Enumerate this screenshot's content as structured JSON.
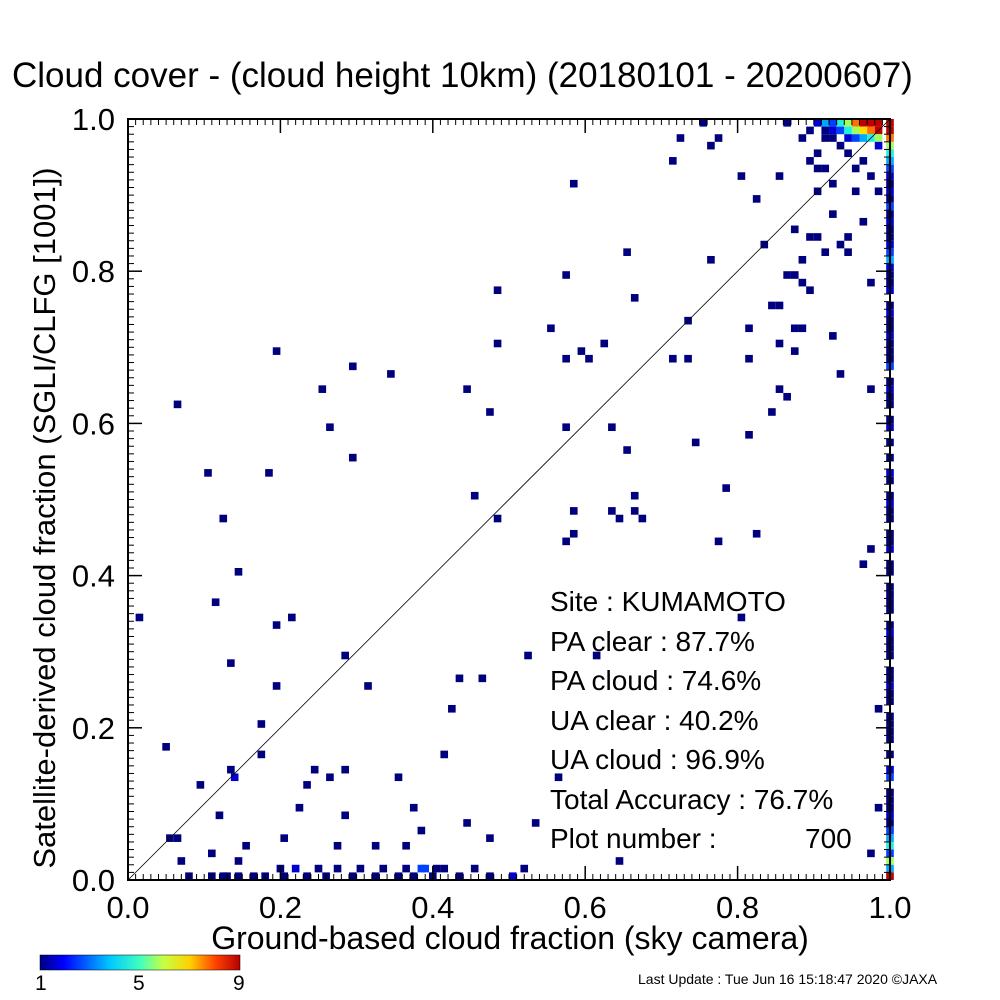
{
  "chart_data": {
    "type": "heatmap",
    "title": "Cloud cover - (cloud height 10km)  (20180101 - 20200607)",
    "xlabel": "Ground-based cloud fraction (sky camera)",
    "ylabel": "Satellite-derived cloud fraction (SGLI/CLFG [1001])",
    "xlim": [
      0,
      1
    ],
    "ylim": [
      0,
      1
    ],
    "x_ticks": [
      "0.0",
      "0.2",
      "0.4",
      "0.6",
      "0.8",
      "1.0"
    ],
    "y_ticks": [
      "0.0",
      "0.2",
      "0.4",
      "0.6",
      "0.8",
      "1.0"
    ],
    "reference_line": "y = x",
    "grid": false,
    "colorbar": {
      "min": 1,
      "max": 9,
      "ticks": [
        "1",
        "5",
        "9"
      ],
      "colormap": "rainbow (blue to red)"
    },
    "cells": [
      [
        0.01,
        0.34,
        1
      ],
      [
        0.06,
        0.62,
        1
      ],
      [
        0.045,
        0.17,
        1
      ],
      [
        0.05,
        0.05,
        1
      ],
      [
        0.06,
        0.05,
        1
      ],
      [
        0.065,
        0.02,
        1
      ],
      [
        0.075,
        0,
        1
      ],
      [
        0.09,
        0.12,
        1
      ],
      [
        0.1,
        0.53,
        1
      ],
      [
        0.105,
        0.03,
        1
      ],
      [
        0.11,
        0.36,
        1
      ],
      [
        0.115,
        0.08,
        1
      ],
      [
        0.12,
        0.47,
        1
      ],
      [
        0.125,
        0,
        1
      ],
      [
        0.13,
        0.28,
        1
      ],
      [
        0.13,
        0.14,
        1
      ],
      [
        0.135,
        0.13,
        2
      ],
      [
        0.14,
        0.4,
        1
      ],
      [
        0.14,
        0.02,
        1
      ],
      [
        0.15,
        0.04,
        1
      ],
      [
        0.17,
        0.2,
        1
      ],
      [
        0.17,
        0.16,
        1
      ],
      [
        0.18,
        0.53,
        1
      ],
      [
        0.19,
        0.69,
        1
      ],
      [
        0.19,
        0.33,
        1
      ],
      [
        0.19,
        0.25,
        1
      ],
      [
        0.2,
        0.05,
        1
      ],
      [
        0.21,
        0.34,
        1
      ],
      [
        0.22,
        0.09,
        1
      ],
      [
        0.23,
        0.12,
        1
      ],
      [
        0.24,
        0.14,
        1
      ],
      [
        0.25,
        0.64,
        1
      ],
      [
        0.26,
        0.59,
        1
      ],
      [
        0.26,
        0.13,
        1
      ],
      [
        0.27,
        0.04,
        1
      ],
      [
        0.28,
        0.29,
        1
      ],
      [
        0.28,
        0.14,
        1
      ],
      [
        0.28,
        0.08,
        1
      ],
      [
        0.29,
        0.67,
        1
      ],
      [
        0.29,
        0.55,
        1
      ],
      [
        0.31,
        0.25,
        1
      ],
      [
        0.32,
        0.04,
        1
      ],
      [
        0.34,
        0.66,
        1
      ],
      [
        0.35,
        0.13,
        1
      ],
      [
        0.36,
        0.04,
        1
      ],
      [
        0.37,
        0.09,
        1
      ],
      [
        0.38,
        0.06,
        1
      ],
      [
        0.38,
        0.01,
        3
      ],
      [
        0.4,
        0.01,
        1
      ],
      [
        0.41,
        0.16,
        1
      ],
      [
        0.42,
        0.22,
        1
      ],
      [
        0.43,
        0.26,
        1
      ],
      [
        0.44,
        0.64,
        1
      ],
      [
        0.44,
        0.07,
        1
      ],
      [
        0.45,
        0.5,
        1
      ],
      [
        0.46,
        0.26,
        1
      ],
      [
        0.47,
        0.61,
        1
      ],
      [
        0.47,
        0.05,
        1
      ],
      [
        0.48,
        0.77,
        1
      ],
      [
        0.48,
        0.7,
        1
      ],
      [
        0.48,
        0.47,
        1
      ],
      [
        0.52,
        0.29,
        1
      ],
      [
        0.53,
        0.07,
        1
      ],
      [
        0.55,
        0.72,
        1
      ],
      [
        0.56,
        0.13,
        1
      ],
      [
        0.57,
        0.79,
        1
      ],
      [
        0.57,
        0.68,
        1
      ],
      [
        0.57,
        0.59,
        1
      ],
      [
        0.57,
        0.44,
        1
      ],
      [
        0.58,
        0.91,
        1
      ],
      [
        0.58,
        0.48,
        1
      ],
      [
        0.58,
        0.45,
        1
      ],
      [
        0.59,
        0.69,
        1
      ],
      [
        0.6,
        0.68,
        1
      ],
      [
        0.61,
        0.29,
        1
      ],
      [
        0.62,
        0.7,
        1
      ],
      [
        0.63,
        0.59,
        1
      ],
      [
        0.63,
        0.48,
        1
      ],
      [
        0.64,
        0.47,
        1
      ],
      [
        0.64,
        0.02,
        1
      ],
      [
        0.65,
        0.82,
        1
      ],
      [
        0.65,
        0.56,
        1
      ],
      [
        0.66,
        0.76,
        1
      ],
      [
        0.66,
        0.5,
        1
      ],
      [
        0.66,
        0.48,
        1
      ],
      [
        0.67,
        0.47,
        1
      ],
      [
        0.71,
        0.94,
        1
      ],
      [
        0.71,
        0.68,
        1
      ],
      [
        0.72,
        0.97,
        1
      ],
      [
        0.73,
        0.73,
        1
      ],
      [
        0.73,
        0.68,
        1
      ],
      [
        0.74,
        0.57,
        1
      ],
      [
        0.75,
        0.99,
        1
      ],
      [
        0.76,
        0.96,
        1
      ],
      [
        0.76,
        0.81,
        1
      ],
      [
        0.77,
        0.97,
        1
      ],
      [
        0.77,
        0.44,
        1
      ],
      [
        0.78,
        0.51,
        1
      ],
      [
        0.8,
        0.92,
        1
      ],
      [
        0.8,
        0.34,
        1
      ],
      [
        0.81,
        0.72,
        1
      ],
      [
        0.81,
        0.68,
        1
      ],
      [
        0.81,
        0.58,
        1
      ],
      [
        0.82,
        0.89,
        1
      ],
      [
        0.82,
        0.45,
        1
      ],
      [
        0.83,
        0.83,
        1
      ],
      [
        0.84,
        0.75,
        1
      ],
      [
        0.84,
        0.61,
        1
      ],
      [
        0.85,
        0.92,
        1
      ],
      [
        0.85,
        0.75,
        1
      ],
      [
        0.85,
        0.7,
        1
      ],
      [
        0.85,
        0.64,
        1
      ],
      [
        0.86,
        0.99,
        1
      ],
      [
        0.86,
        0.79,
        1
      ],
      [
        0.86,
        0.63,
        1
      ],
      [
        0.87,
        0.85,
        1
      ],
      [
        0.87,
        0.79,
        1
      ],
      [
        0.87,
        0.72,
        1
      ],
      [
        0.87,
        0.69,
        1
      ],
      [
        0.88,
        0.97,
        1
      ],
      [
        0.88,
        0.81,
        1
      ],
      [
        0.88,
        0.78,
        1
      ],
      [
        0.88,
        0.72,
        1
      ],
      [
        0.89,
        0.98,
        1
      ],
      [
        0.89,
        0.94,
        1
      ],
      [
        0.89,
        0.84,
        1
      ],
      [
        0.89,
        0.77,
        1
      ],
      [
        0.9,
        0.99,
        2
      ],
      [
        0.9,
        0.95,
        1
      ],
      [
        0.9,
        0.93,
        1
      ],
      [
        0.9,
        0.9,
        1
      ],
      [
        0.9,
        0.84,
        1
      ],
      [
        0.91,
        0.99,
        4
      ],
      [
        0.91,
        0.98,
        1
      ],
      [
        0.91,
        0.97,
        1
      ],
      [
        0.91,
        0.93,
        1
      ],
      [
        0.91,
        0.82,
        1
      ],
      [
        0.92,
        0.99,
        3
      ],
      [
        0.92,
        0.98,
        2
      ],
      [
        0.92,
        0.97,
        1
      ],
      [
        0.92,
        0.91,
        1
      ],
      [
        0.92,
        0.87,
        1
      ],
      [
        0.92,
        0.71,
        1
      ],
      [
        0.93,
        0.99,
        5
      ],
      [
        0.93,
        0.98,
        3
      ],
      [
        0.93,
        0.96,
        1
      ],
      [
        0.93,
        0.83,
        1
      ],
      [
        0.93,
        0.66,
        1
      ],
      [
        0.94,
        0.99,
        6
      ],
      [
        0.94,
        0.98,
        5
      ],
      [
        0.94,
        0.97,
        2
      ],
      [
        0.94,
        0.95,
        1
      ],
      [
        0.94,
        0.84,
        1
      ],
      [
        0.94,
        0.82,
        1
      ],
      [
        0.95,
        0.99,
        8
      ],
      [
        0.95,
        0.98,
        6
      ],
      [
        0.95,
        0.97,
        3
      ],
      [
        0.95,
        0.93,
        1
      ],
      [
        0.95,
        0.9,
        1
      ],
      [
        0.96,
        0.99,
        9
      ],
      [
        0.96,
        0.98,
        7
      ],
      [
        0.96,
        0.97,
        4
      ],
      [
        0.96,
        0.94,
        1
      ],
      [
        0.96,
        0.86,
        1
      ],
      [
        0.96,
        0.41,
        1
      ],
      [
        0.97,
        0.99,
        9
      ],
      [
        0.97,
        0.98,
        8
      ],
      [
        0.97,
        0.97,
        5
      ],
      [
        0.97,
        0.92,
        1
      ],
      [
        0.97,
        0.78,
        1
      ],
      [
        0.97,
        0.64,
        1
      ],
      [
        0.97,
        0.43,
        1
      ],
      [
        0.97,
        0.03,
        1
      ],
      [
        0.98,
        0.99,
        9
      ],
      [
        0.98,
        0.98,
        9
      ],
      [
        0.98,
        0.97,
        6
      ],
      [
        0.98,
        0.96,
        2
      ],
      [
        0.98,
        0.9,
        1
      ],
      [
        0.98,
        0.22,
        1
      ],
      [
        0.98,
        0.09,
        1
      ],
      [
        0.995,
        0.99,
        9
      ],
      [
        0.995,
        0.98,
        9
      ],
      [
        0.995,
        0.97,
        8
      ],
      [
        0.995,
        0.96,
        6
      ],
      [
        0.995,
        0.95,
        5
      ],
      [
        0.995,
        0.94,
        4
      ],
      [
        0.995,
        0.93,
        3
      ],
      [
        0.995,
        0.92,
        2
      ],
      [
        0.995,
        0.91,
        1
      ],
      [
        0.995,
        0.9,
        2
      ],
      [
        0.995,
        0.89,
        1
      ],
      [
        0.995,
        0.88,
        3
      ],
      [
        0.995,
        0.87,
        1
      ],
      [
        0.995,
        0.86,
        2
      ],
      [
        0.995,
        0.85,
        1
      ],
      [
        0.995,
        0.84,
        1
      ],
      [
        0.995,
        0.83,
        2
      ],
      [
        0.995,
        0.82,
        3
      ],
      [
        0.995,
        0.81,
        4
      ],
      [
        0.995,
        0.8,
        2
      ],
      [
        0.995,
        0.79,
        1
      ],
      [
        0.995,
        0.78,
        1
      ],
      [
        0.995,
        0.77,
        2
      ],
      [
        0.995,
        0.75,
        1
      ],
      [
        0.995,
        0.74,
        2
      ],
      [
        0.995,
        0.73,
        1
      ],
      [
        0.995,
        0.72,
        1
      ],
      [
        0.995,
        0.71,
        2
      ],
      [
        0.995,
        0.7,
        1
      ],
      [
        0.995,
        0.69,
        1
      ],
      [
        0.995,
        0.68,
        1
      ],
      [
        0.995,
        0.67,
        3
      ],
      [
        0.995,
        0.65,
        1
      ],
      [
        0.995,
        0.64,
        2
      ],
      [
        0.995,
        0.63,
        1
      ],
      [
        0.995,
        0.62,
        1
      ],
      [
        0.995,
        0.6,
        1
      ],
      [
        0.995,
        0.59,
        2
      ],
      [
        0.995,
        0.57,
        1
      ],
      [
        0.995,
        0.55,
        1
      ],
      [
        0.995,
        0.53,
        2
      ],
      [
        0.995,
        0.52,
        1
      ],
      [
        0.995,
        0.5,
        1
      ],
      [
        0.995,
        0.49,
        2
      ],
      [
        0.995,
        0.48,
        1
      ],
      [
        0.995,
        0.47,
        1
      ],
      [
        0.995,
        0.45,
        1
      ],
      [
        0.995,
        0.44,
        1
      ],
      [
        0.995,
        0.43,
        2
      ],
      [
        0.995,
        0.41,
        1
      ],
      [
        0.995,
        0.4,
        1
      ],
      [
        0.995,
        0.38,
        1
      ],
      [
        0.995,
        0.37,
        1
      ],
      [
        0.995,
        0.36,
        1
      ],
      [
        0.995,
        0.35,
        1
      ],
      [
        0.995,
        0.33,
        1
      ],
      [
        0.995,
        0.32,
        2
      ],
      [
        0.995,
        0.31,
        1
      ],
      [
        0.995,
        0.3,
        1
      ],
      [
        0.995,
        0.29,
        1
      ],
      [
        0.995,
        0.27,
        1
      ],
      [
        0.995,
        0.26,
        1
      ],
      [
        0.995,
        0.25,
        2
      ],
      [
        0.995,
        0.24,
        1
      ],
      [
        0.995,
        0.23,
        1
      ],
      [
        0.995,
        0.21,
        1
      ],
      [
        0.995,
        0.2,
        1
      ],
      [
        0.995,
        0.19,
        1
      ],
      [
        0.995,
        0.18,
        1
      ],
      [
        0.995,
        0.16,
        1
      ],
      [
        0.995,
        0.14,
        2
      ],
      [
        0.995,
        0.13,
        3
      ],
      [
        0.995,
        0.11,
        1
      ],
      [
        0.995,
        0.1,
        1
      ],
      [
        0.995,
        0.09,
        1
      ],
      [
        0.995,
        0.08,
        2
      ],
      [
        0.995,
        0.07,
        1
      ],
      [
        0.995,
        0.06,
        3
      ],
      [
        0.995,
        0.05,
        4
      ],
      [
        0.995,
        0.04,
        5
      ],
      [
        0.995,
        0.03,
        3
      ],
      [
        0.995,
        0.02,
        6
      ],
      [
        0.995,
        0.01,
        4
      ],
      [
        0.995,
        0,
        9
      ],
      [
        0.105,
        0,
        1
      ],
      [
        0.12,
        0,
        1
      ],
      [
        0.14,
        0,
        1
      ],
      [
        0.16,
        0,
        1
      ],
      [
        0.175,
        0,
        1
      ],
      [
        0.195,
        0.01,
        1
      ],
      [
        0.2,
        0,
        1
      ],
      [
        0.215,
        0.01,
        2
      ],
      [
        0.23,
        0,
        1
      ],
      [
        0.245,
        0.01,
        1
      ],
      [
        0.255,
        0,
        1
      ],
      [
        0.27,
        0.01,
        1
      ],
      [
        0.29,
        0,
        1
      ],
      [
        0.3,
        0.01,
        1
      ],
      [
        0.32,
        0,
        1
      ],
      [
        0.33,
        0.01,
        1
      ],
      [
        0.35,
        0,
        1
      ],
      [
        0.36,
        0.01,
        1
      ],
      [
        0.37,
        0,
        1
      ],
      [
        0.385,
        0.01,
        3
      ],
      [
        0.395,
        0,
        1
      ],
      [
        0.41,
        0.01,
        1
      ],
      [
        0.43,
        0,
        1
      ],
      [
        0.45,
        0.01,
        1
      ],
      [
        0.47,
        0,
        1
      ],
      [
        0.5,
        0,
        2
      ],
      [
        0.515,
        0.01,
        1
      ]
    ]
  },
  "stats": {
    "site": "Site : KUMAMOTO",
    "pa_clear": "PA clear :  87.7%",
    "pa_cloud": "PA cloud :  74.6%",
    "ua_clear": "UA clear :  40.2%",
    "ua_cloud": "UA cloud :  96.9%",
    "total_accuracy": "Total Accuracy :  76.7%",
    "plot_number_label": "Plot number :",
    "plot_number_value": "700"
  },
  "footer": "Last Update : Tue Jun 16 15:18:47 2020  ©JAXA"
}
